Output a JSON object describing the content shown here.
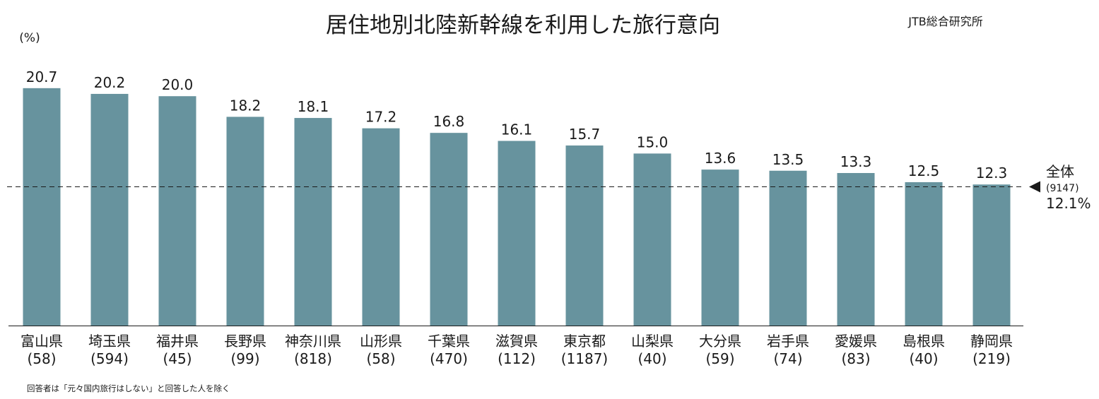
{
  "chart_data": {
    "type": "bar",
    "title": "居住地別北陸新幹線を利用した旅行意向",
    "source": "JTB総合研究所",
    "ylabel": "(%)",
    "ylim": [
      0,
      22
    ],
    "grid": false,
    "categories": [
      "富山県",
      "埼玉県",
      "福井県",
      "長野県",
      "神奈川県",
      "山形県",
      "千葉県",
      "滋賀県",
      "東京都",
      "山梨県",
      "大分県",
      "岩手県",
      "愛媛県",
      "島根県",
      "静岡県"
    ],
    "sample_sizes": [
      "(58)",
      "(594)",
      "(45)",
      "(99)",
      "(818)",
      "(58)",
      "(470)",
      "(112)",
      "(1187)",
      "(40)",
      "(59)",
      "(74)",
      "(83)",
      "(40)",
      "(219)"
    ],
    "values": [
      20.7,
      20.2,
      20.0,
      18.2,
      18.1,
      17.2,
      16.8,
      16.1,
      15.7,
      15.0,
      13.6,
      13.5,
      13.3,
      12.5,
      12.3
    ],
    "value_labels": [
      "20.7",
      "20.2",
      "20.0",
      "18.2",
      "18.1",
      "17.2",
      "16.8",
      "16.1",
      "15.7",
      "15.0",
      "13.6",
      "13.5",
      "13.3",
      "12.5",
      "12.3"
    ],
    "reference_line": {
      "label": "全体",
      "n": "(9147)",
      "value": 12.1,
      "value_label": "12.1%"
    },
    "footnote": "回答者は「元々国内旅行はしない」と回答した人を除く",
    "colors": {
      "bar": "#67939e",
      "text": "#1a1a1a"
    }
  }
}
